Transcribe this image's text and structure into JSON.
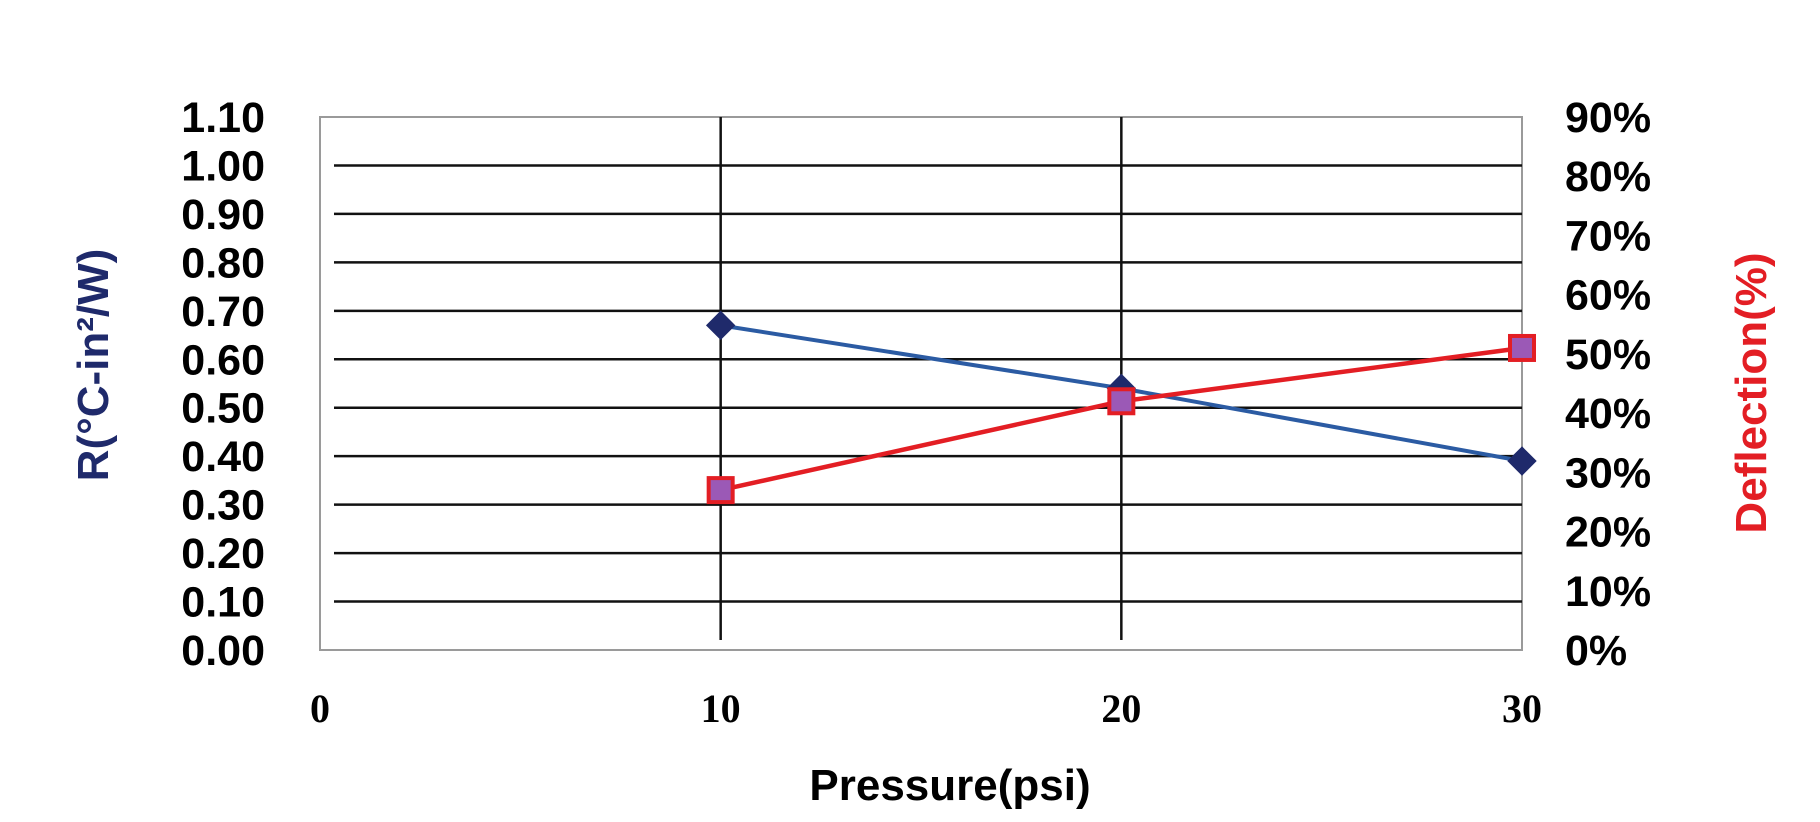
{
  "chart_data": {
    "type": "line",
    "title": "",
    "xlabel": "Pressure(psi)",
    "ylabel": "R(°C-in²/W)",
    "y2label": "Deflection(%)",
    "x": [
      10,
      20,
      30
    ],
    "xlim": [
      0,
      30
    ],
    "xticks": [
      "0",
      "10",
      "20",
      "30"
    ],
    "ylim": [
      0,
      1.1
    ],
    "yticks": [
      "0.00",
      "0.10",
      "0.20",
      "0.30",
      "0.40",
      "0.50",
      "0.60",
      "0.70",
      "0.80",
      "0.90",
      "1.00",
      "1.10"
    ],
    "y2lim": [
      0,
      90
    ],
    "y2ticks": [
      "0%",
      "10%",
      "20%",
      "30%",
      "40%",
      "50%",
      "60%",
      "70%",
      "80%",
      "90%"
    ],
    "grid": true,
    "series": [
      {
        "axis": "left",
        "marker": "diamond",
        "color": "#2b5ba3",
        "marker_color": "#1f2a6b",
        "values": [
          0.67,
          0.54,
          0.39
        ]
      },
      {
        "axis": "right",
        "marker": "square",
        "color": "#e31e24",
        "marker_fill": "#9b59b6",
        "values": [
          27,
          42,
          51
        ]
      }
    ],
    "colors": {
      "left_axis_title": "#1f2a6b",
      "right_axis_title": "#e31e24"
    }
  }
}
